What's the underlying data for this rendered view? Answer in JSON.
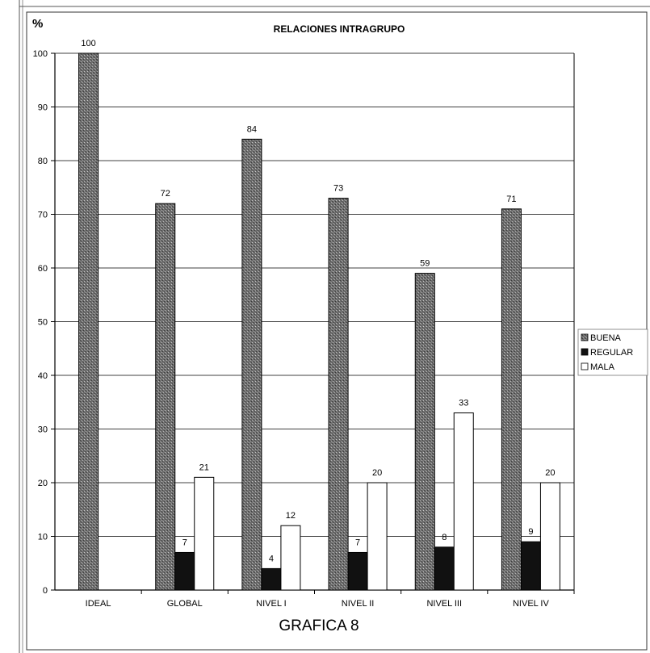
{
  "chart_data": {
    "type": "bar",
    "title": "RELACIONES INTRAGRUPO",
    "ylabel": "%",
    "caption": "GRAFICA 8",
    "ylim": [
      0,
      100
    ],
    "yticks": [
      0,
      10,
      20,
      30,
      40,
      50,
      60,
      70,
      80,
      90,
      100
    ],
    "categories": [
      "IDEAL",
      "GLOBAL",
      "NIVEL I",
      "NIVEL II",
      "NIVEL III",
      "NIVEL IV"
    ],
    "series": [
      {
        "name": "BUENA",
        "values": [
          100,
          72,
          84,
          73,
          59,
          71
        ],
        "fill": "dotted-dark-gray"
      },
      {
        "name": "REGULAR",
        "values": [
          null,
          7,
          4,
          7,
          8,
          9
        ],
        "fill": "#111111"
      },
      {
        "name": "MALA",
        "values": [
          null,
          21,
          12,
          20,
          33,
          20
        ],
        "fill": "#ffffff"
      }
    ],
    "grid": "horizontal",
    "legend_position": "right"
  }
}
